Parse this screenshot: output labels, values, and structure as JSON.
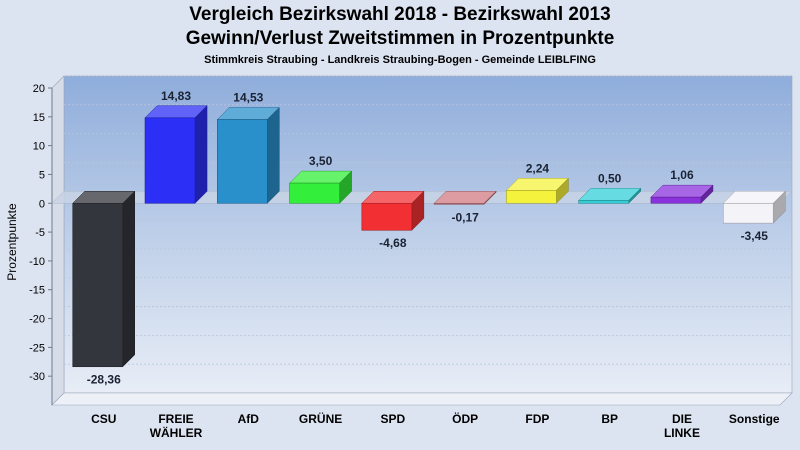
{
  "chart_data": {
    "type": "bar",
    "title": "Vergleich Bezirkswahl 2018 - Bezirkswahl 2013",
    "title2": "Gewinn/Verlust Zweitstimmen in Prozentpunkte",
    "subtitle": "Stimmkreis Straubing - Landkreis Straubing-Bogen - Gemeinde LEIBLFING",
    "ylabel": "Prozentpunkte",
    "ylim": [
      -35,
      20
    ],
    "yticks": [
      20,
      15,
      10,
      5,
      0,
      -5,
      -10,
      -15,
      -20,
      -25,
      -30
    ],
    "ytick_labels": [
      "20",
      "15",
      "10",
      "5",
      "0",
      "-5",
      "-10",
      "-15",
      "-20",
      "-25",
      "-30"
    ],
    "categories": [
      [
        "CSU"
      ],
      [
        "FREIE",
        "WÄHLER"
      ],
      [
        "AfD"
      ],
      [
        "GRÜNE"
      ],
      [
        "SPD"
      ],
      [
        "ÖDP"
      ],
      [
        "FDP"
      ],
      [
        "BP"
      ],
      [
        "DIE",
        "LINKE"
      ],
      [
        "Sonstige"
      ]
    ],
    "values": [
      -28.36,
      14.83,
      14.53,
      3.5,
      -4.68,
      -0.17,
      2.24,
      0.5,
      1.06,
      -3.45
    ],
    "value_labels": [
      "-28,36",
      "14,83",
      "14,53",
      "3,50",
      "-4,68",
      "-0,17",
      "2,24",
      "0,50",
      "1,06",
      "-3,45"
    ],
    "colors": [
      "#33363d",
      "#2c2ff5",
      "#2990cc",
      "#33ee3a",
      "#f23034",
      "#d07b83",
      "#f5f23e",
      "#33cfd7",
      "#8a33dd",
      "#f3f3f8"
    ],
    "grid": true
  }
}
